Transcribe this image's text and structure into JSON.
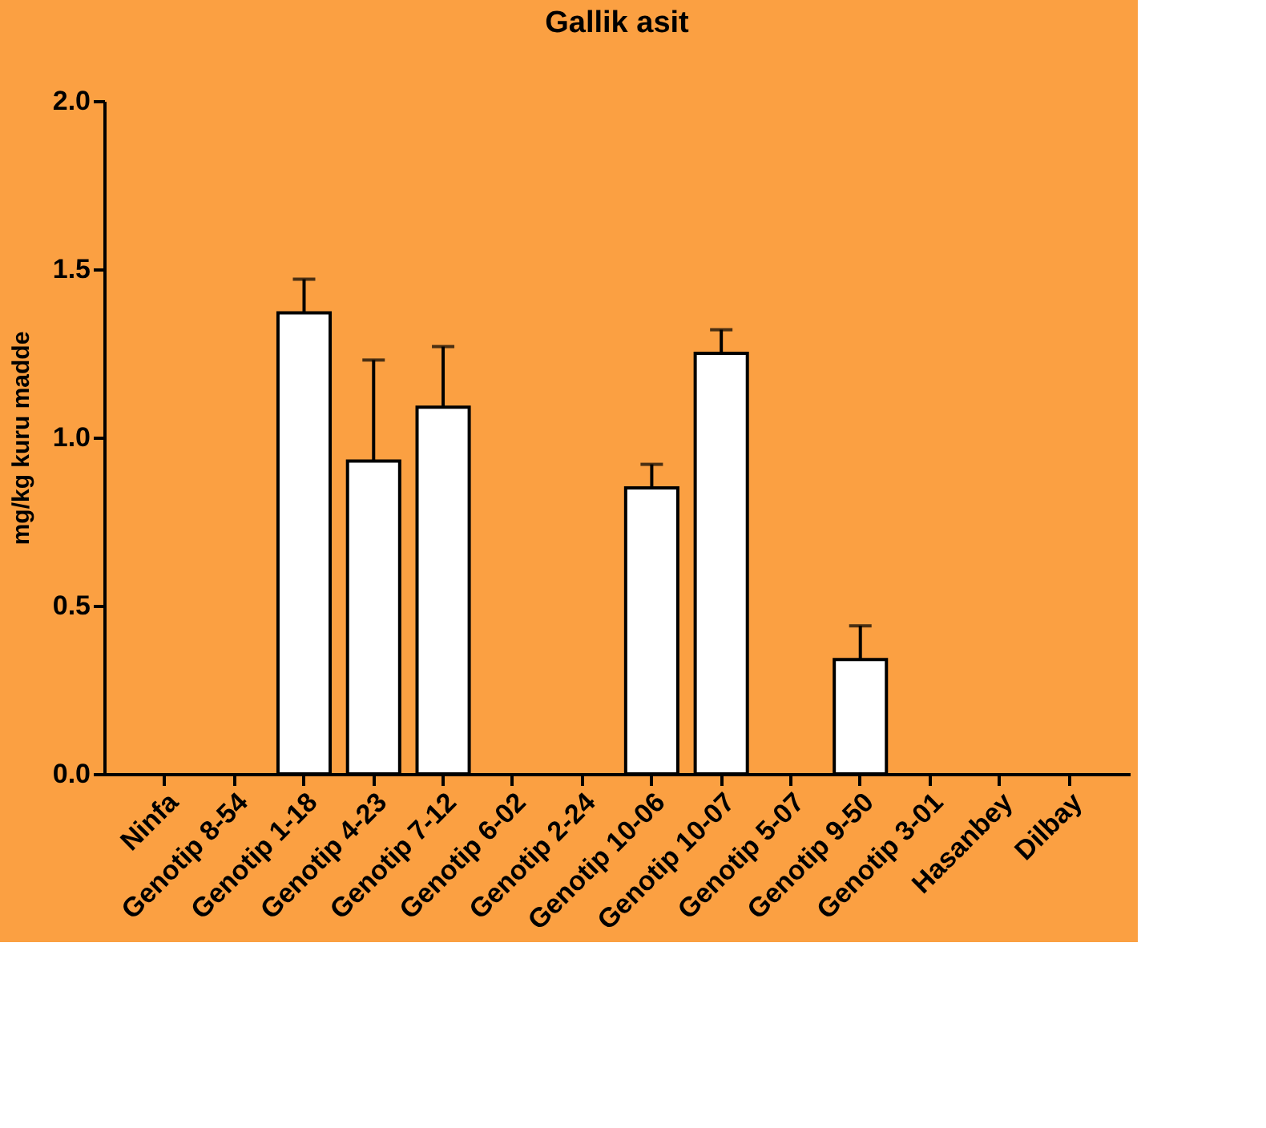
{
  "chart_data": {
    "type": "bar",
    "title": "Gallik asit",
    "ylabel": "mg/kg kuru madde",
    "categories": [
      "Ninfa",
      "Genotip 8-54",
      "Genotip 1-18",
      "Genotip 4-23",
      "Genotip 7-12",
      "Genotip 6-02",
      "Genotip 2-24",
      "Genotip 10-06",
      "Genotip 10-07",
      "Genotip 5-07",
      "Genotip 9-50",
      "Genotip 3-01",
      "Hasanbey",
      "Dilbay"
    ],
    "values": [
      null,
      null,
      1.37,
      0.93,
      1.09,
      null,
      null,
      0.85,
      1.25,
      null,
      0.34,
      null,
      null,
      null
    ],
    "errors": [
      null,
      null,
      [
        1.37,
        1.47
      ],
      [
        0.93,
        1.23
      ],
      [
        1.09,
        1.27
      ],
      null,
      null,
      [
        0.85,
        0.92
      ],
      [
        1.25,
        1.32
      ],
      null,
      [
        0.34,
        0.44
      ],
      null,
      null,
      null
    ],
    "color": "#ffffff",
    "ylim": [
      0,
      2
    ],
    "yticks": [
      {
        "value": 0,
        "label": "0.0"
      },
      {
        "value": 0.5,
        "label": "0.5"
      },
      {
        "value": 1,
        "label": "1.0"
      },
      {
        "value": 1.5,
        "label": "1.5"
      },
      {
        "value": 2,
        "label": "2.0"
      }
    ],
    "grid": false
  }
}
